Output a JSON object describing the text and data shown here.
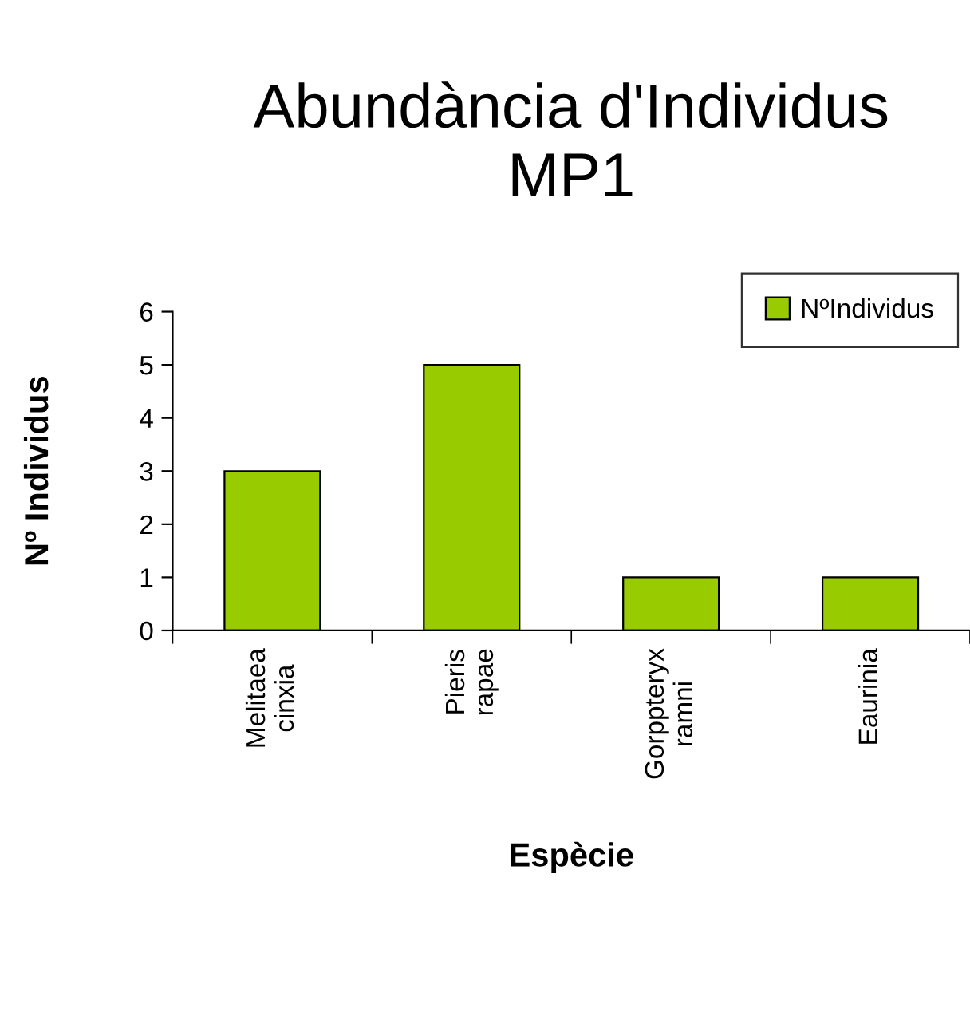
{
  "chart_data": {
    "type": "bar",
    "title": "Abundància d'Individus\nMP1",
    "xlabel": "Espècie",
    "ylabel": "Nº Individus",
    "categories": [
      "Melitaea cinxia",
      "Pieris rapae",
      "Gorppteryx ramni",
      "Eaurinia"
    ],
    "series": [
      {
        "name": "NºIndividus",
        "color": "#99cc00",
        "values": [
          3,
          5,
          1,
          1
        ]
      }
    ],
    "ylim": [
      0,
      6
    ],
    "yticks": [
      0,
      1,
      2,
      3,
      4,
      5,
      6
    ],
    "grid": false,
    "legend": "top right"
  }
}
